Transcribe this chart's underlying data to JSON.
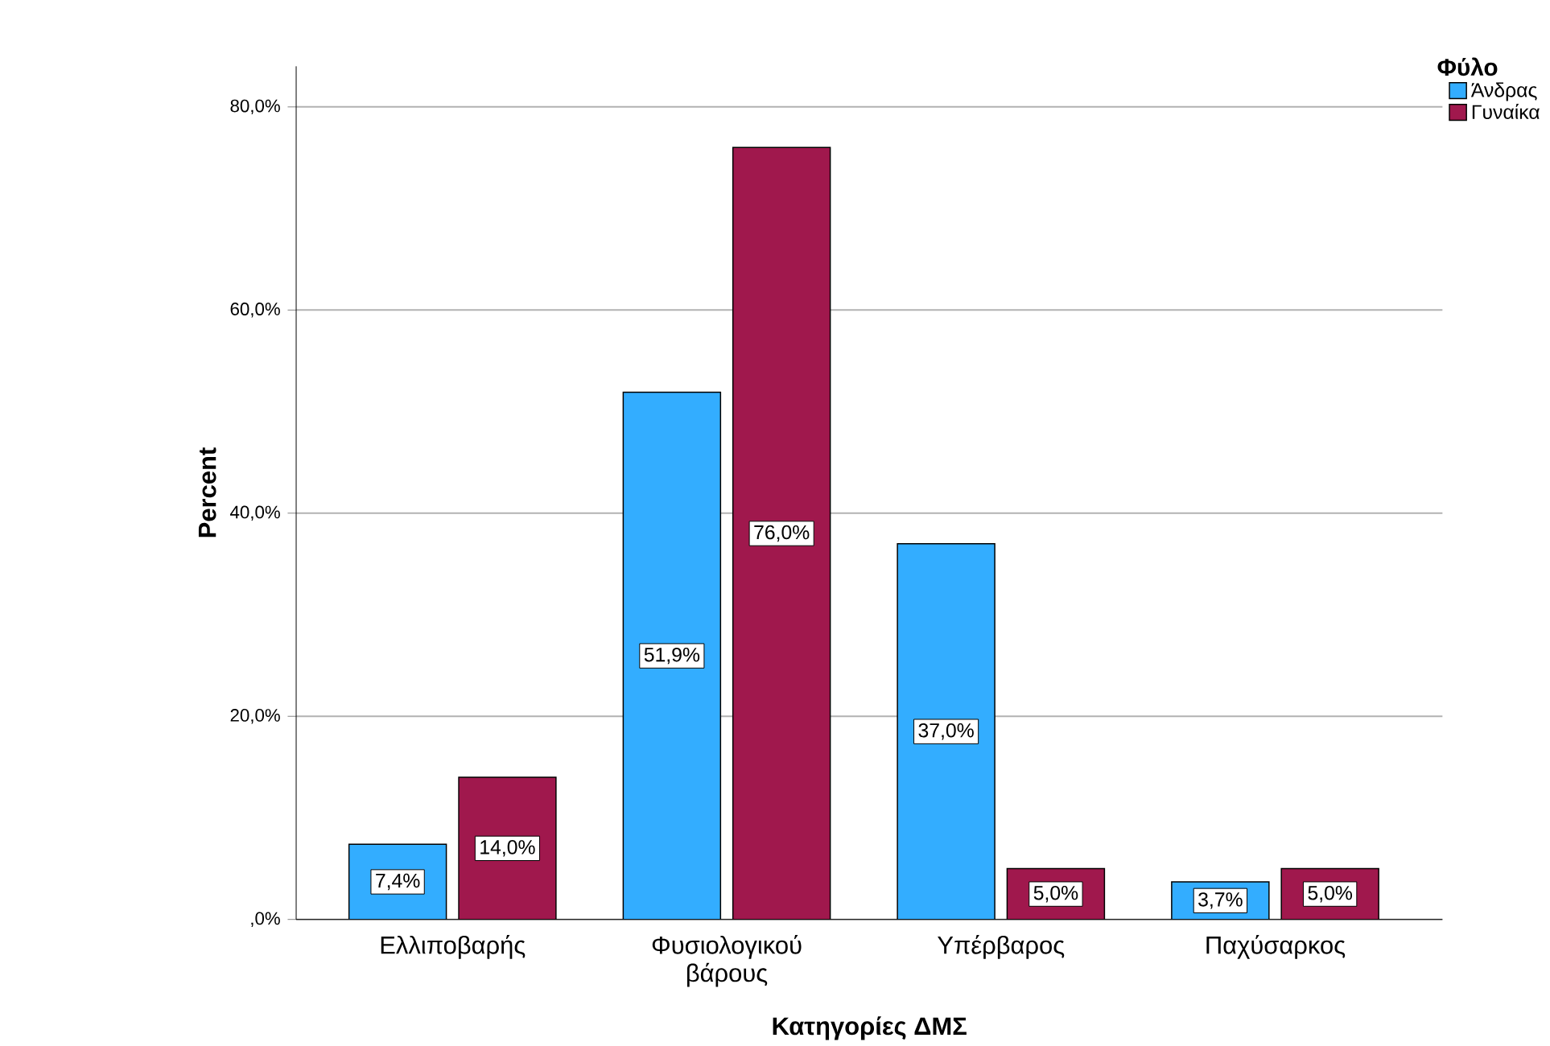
{
  "chart_data": {
    "type": "bar",
    "xlabel": "Κατηγορίες ΔΜΣ",
    "ylabel": "Percent",
    "legend_title": "Φύλο",
    "categories": [
      "Ελλιποβαρής",
      "Φυσιολογικού βάρους",
      "Υπέρβαρος",
      "Παχύσαρκος"
    ],
    "series": [
      {
        "name": "Άνδρας",
        "color": "#33adff",
        "values": [
          7.4,
          51.9,
          37.0,
          3.7
        ],
        "value_labels": [
          "7,4%",
          "51,9%",
          "37,0%",
          "3,7%"
        ]
      },
      {
        "name": "Γυναίκα",
        "color": "#a0184d",
        "values": [
          14.0,
          76.0,
          5.0,
          5.0
        ],
        "value_labels": [
          "14,0%",
          "76,0%",
          "5,0%",
          "5,0%"
        ]
      }
    ],
    "ylim": [
      0,
      84
    ],
    "yticks": [
      {
        "value": 0,
        "label": ",0%"
      },
      {
        "value": 20,
        "label": "20,0%"
      },
      {
        "value": 40,
        "label": "40,0%"
      },
      {
        "value": 60,
        "label": "60,0%"
      },
      {
        "value": 80,
        "label": "80,0%"
      }
    ],
    "grid": "y",
    "legend": "top right"
  }
}
